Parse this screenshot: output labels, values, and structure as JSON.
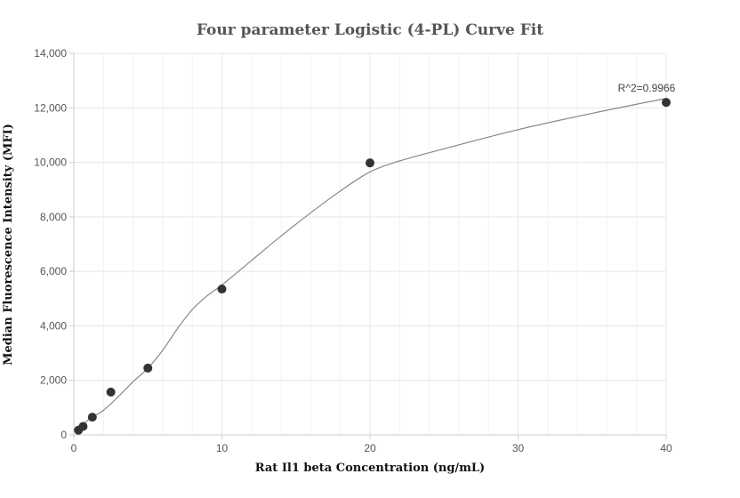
{
  "chart_data": {
    "type": "scatter",
    "title": "Four parameter Logistic (4-PL) Curve Fit",
    "xlabel": "Rat Il1 beta Concentration (ng/mL)",
    "ylabel": "Median Fluorescence Intensity (MFI)",
    "xlim": [
      0,
      40
    ],
    "ylim": [
      0,
      14000
    ],
    "x_ticks": [
      0,
      10,
      20,
      30,
      40
    ],
    "y_ticks": [
      0,
      2000,
      4000,
      6000,
      8000,
      10000,
      12000,
      14000
    ],
    "x_tick_labels": [
      "0",
      "10",
      "20",
      "30",
      "40"
    ],
    "y_tick_labels": [
      "0",
      "2,000",
      "4,000",
      "6,000",
      "8,000",
      "10,000",
      "12,000",
      "14,000"
    ],
    "grid": true,
    "points": {
      "x": [
        0.3125,
        0.625,
        1.25,
        2.5,
        5,
        10,
        20,
        40
      ],
      "y": [
        170,
        310,
        650,
        1570,
        2450,
        5350,
        9980,
        12200
      ]
    },
    "fit_curve": {
      "x": [
        0.3,
        1,
        2,
        3,
        4,
        5,
        6,
        7,
        8,
        9,
        10,
        12,
        14,
        16,
        18,
        20,
        22,
        25,
        30,
        35,
        40
      ],
      "y": [
        180,
        560,
        900,
        1400,
        1950,
        2450,
        3100,
        3900,
        4600,
        5100,
        5500,
        6400,
        7300,
        8150,
        8950,
        9650,
        10050,
        10500,
        11200,
        11800,
        12350
      ]
    },
    "annotation": "R^2=0.9966",
    "colors": {
      "points": "#333333",
      "curve": "#888888"
    }
  }
}
